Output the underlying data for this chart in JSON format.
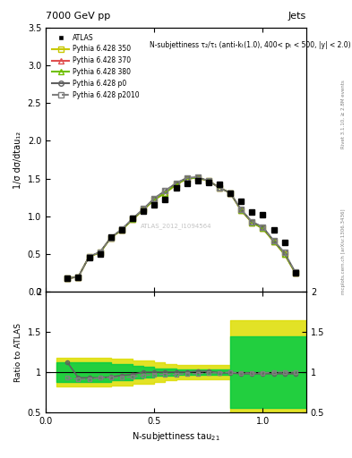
{
  "title_left": "7000 GeV pp",
  "title_right": "Jets",
  "right_label_top": "Rivet 3.1.10, ≥ 2.8M events",
  "right_label_bottom": "mcplots.cern.ch [arXiv:1306.3436]",
  "watermark": "ATLAS_2012_I1094564",
  "panel1_ylabel": "1/σ dσ/dtau₁₂",
  "panel1_xlabel": "",
  "panel2_ylabel": "Ratio to ATLAS",
  "panel2_xlabel": "N-subjettiness tau$_{21}$",
  "annotation": "N-subjettiness τ₂/τ₁ (anti-kₜ(1.0), 400< pₜ < 500, |y| < 2.0)",
  "ylim1": [
    0,
    3.5
  ],
  "ylim2": [
    0.5,
    2.0
  ],
  "xlim": [
    0.0,
    1.2
  ],
  "x_ticks": [
    0,
    0.5,
    1.0
  ],
  "x_data": [
    0.1,
    0.15,
    0.2,
    0.25,
    0.3,
    0.35,
    0.4,
    0.45,
    0.5,
    0.55,
    0.6,
    0.65,
    0.7,
    0.75,
    0.8,
    0.85,
    0.9,
    0.95,
    1.0,
    1.05,
    1.1,
    1.15
  ],
  "atlas_y": [
    0.18,
    0.2,
    0.46,
    0.5,
    0.73,
    0.82,
    0.97,
    1.07,
    1.15,
    1.22,
    1.38,
    1.44,
    1.47,
    1.45,
    1.42,
    1.31,
    1.2,
    1.06,
    1.02,
    0.82,
    0.66,
    0.25
  ],
  "py350_y": [
    0.18,
    0.2,
    0.47,
    0.52,
    0.72,
    0.82,
    0.96,
    1.09,
    1.22,
    1.31,
    1.42,
    1.5,
    1.51,
    1.47,
    1.38,
    1.31,
    1.08,
    0.92,
    0.84,
    0.67,
    0.5,
    0.25
  ],
  "py370_y": [
    0.18,
    0.2,
    0.47,
    0.52,
    0.72,
    0.82,
    0.96,
    1.09,
    1.22,
    1.31,
    1.42,
    1.5,
    1.51,
    1.47,
    1.38,
    1.31,
    1.08,
    0.92,
    0.84,
    0.67,
    0.5,
    0.25
  ],
  "py380_y": [
    0.18,
    0.2,
    0.47,
    0.52,
    0.72,
    0.82,
    0.96,
    1.09,
    1.22,
    1.31,
    1.42,
    1.5,
    1.51,
    1.47,
    1.38,
    1.31,
    1.08,
    0.92,
    0.84,
    0.67,
    0.5,
    0.25
  ],
  "pyp0_y": [
    0.18,
    0.2,
    0.47,
    0.53,
    0.72,
    0.83,
    0.97,
    1.1,
    1.24,
    1.34,
    1.44,
    1.51,
    1.52,
    1.47,
    1.38,
    1.31,
    1.09,
    0.93,
    0.86,
    0.68,
    0.52,
    0.26
  ],
  "pyp2010_y": [
    0.18,
    0.2,
    0.47,
    0.53,
    0.72,
    0.83,
    0.97,
    1.1,
    1.24,
    1.34,
    1.44,
    1.51,
    1.52,
    1.47,
    1.38,
    1.31,
    1.09,
    0.93,
    0.86,
    0.68,
    0.52,
    0.26
  ],
  "ratio_pyp0_y": [
    1.12,
    0.93,
    0.93,
    0.93,
    0.94,
    0.96,
    0.97,
    1.0,
    1.0,
    1.0,
    1.0,
    1.0,
    1.01,
    1.01,
    0.99,
    0.99,
    0.98,
    0.98,
    0.98,
    0.98,
    0.98,
    0.98
  ],
  "ratio_pyp2010_y": [
    0.93,
    0.91,
    0.91,
    0.93,
    0.93,
    0.93,
    0.94,
    0.96,
    0.97,
    0.97,
    0.97,
    0.98,
    0.98,
    0.99,
    0.99,
    1.0,
    0.99,
    0.99,
    0.99,
    1.0,
    1.0,
    1.0
  ],
  "green_band_lo": [
    0.88,
    0.88,
    0.88,
    0.88,
    0.9,
    0.9,
    0.92,
    0.93,
    0.95,
    0.96,
    0.97,
    0.97,
    0.97,
    0.97,
    0.97,
    0.55,
    0.55,
    0.55,
    0.55,
    0.55,
    0.55,
    0.55
  ],
  "green_band_hi": [
    1.12,
    1.12,
    1.12,
    1.12,
    1.1,
    1.1,
    1.08,
    1.07,
    1.05,
    1.04,
    1.03,
    1.03,
    1.03,
    1.03,
    1.03,
    1.45,
    1.45,
    1.45,
    1.45,
    1.45,
    1.45,
    1.45
  ],
  "yellow_band_lo": [
    0.82,
    0.82,
    0.82,
    0.82,
    0.83,
    0.83,
    0.85,
    0.86,
    0.88,
    0.9,
    0.91,
    0.91,
    0.91,
    0.91,
    0.91,
    0.4,
    0.4,
    0.4,
    0.4,
    0.4,
    0.4,
    0.4
  ],
  "yellow_band_hi": [
    1.18,
    1.18,
    1.18,
    1.18,
    1.17,
    1.17,
    1.15,
    1.14,
    1.12,
    1.1,
    1.09,
    1.09,
    1.09,
    1.09,
    1.09,
    1.65,
    1.65,
    1.65,
    1.65,
    1.65,
    1.65,
    1.65
  ],
  "color_350": "#c8c800",
  "color_370": "#e05050",
  "color_380": "#70c000",
  "color_p0": "#606060",
  "color_p2010": "#808080",
  "color_atlas": "#000000",
  "color_green_band": "#00cc44",
  "color_yellow_band": "#dddd00"
}
